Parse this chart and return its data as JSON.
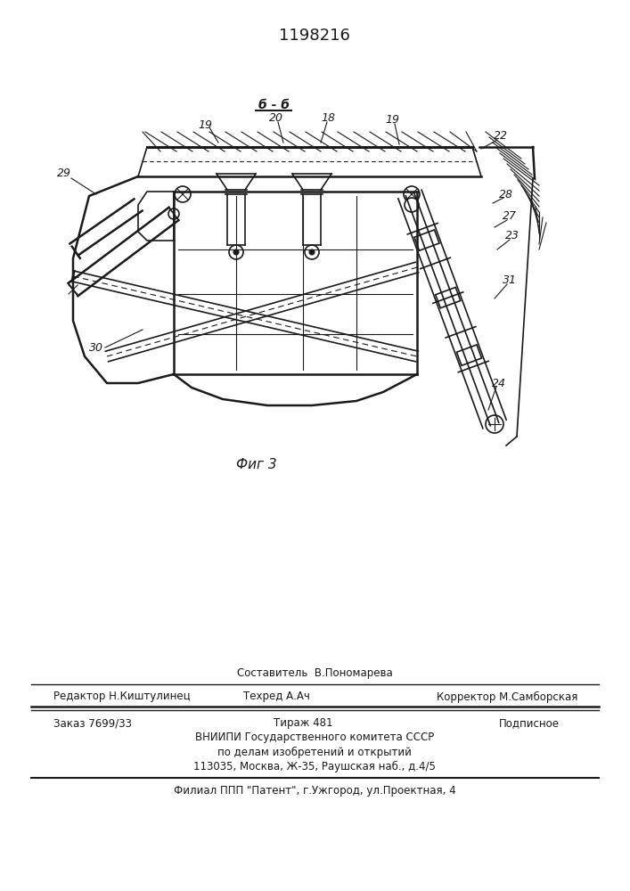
{
  "patent_number": "1198216",
  "figure_label": "Фиг 3",
  "section_label": "б - б",
  "bg_color": "#ffffff",
  "dc": "#1a1a1a",
  "footer_line0_center": "Составитель  В.Пономарева",
  "footer_line1_left": "Редактор Н.Киштулинец",
  "footer_line1_center": "Техред А.Ач",
  "footer_line1_right": "Корректор М.Самборская",
  "footer_line2_left": "Заказ 7699/33",
  "footer_line2_center": "Тираж 481",
  "footer_line2_right": "Подписное",
  "footer_line3": "ВНИИПИ Государственного комитета СССР",
  "footer_line4": "по делам изобретений и открытий",
  "footer_line5": "113035, Москва, Ж-35, Раушская наб., д.4/5",
  "footer_line6": "Филиал ППП \"Патент\", г.Ужгород, ул.Проектная, 4"
}
